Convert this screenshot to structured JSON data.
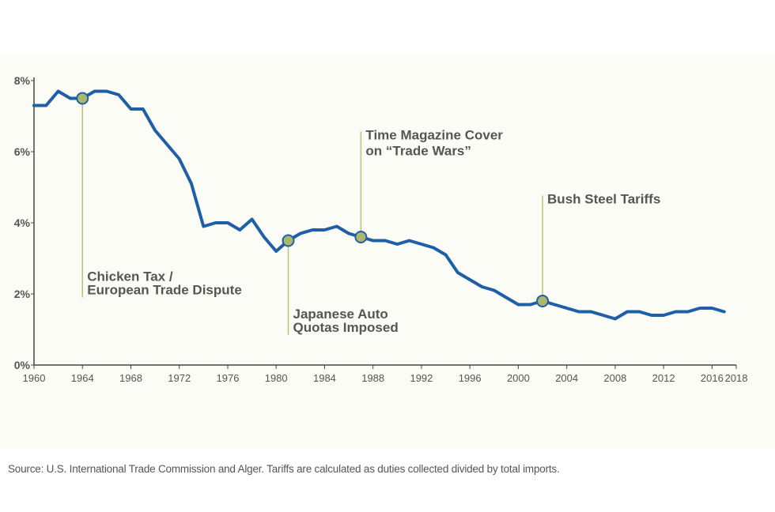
{
  "chart_data": {
    "type": "line",
    "title": "",
    "xlabel": "",
    "ylabel": "",
    "ylim": [
      0,
      8
    ],
    "xlim": [
      1960,
      2018
    ],
    "y_ticks": [
      "0%",
      "2%",
      "4%",
      "6%",
      "8%"
    ],
    "y_tick_values": [
      0,
      2,
      4,
      6,
      8
    ],
    "x_ticks": [
      "1960",
      "1964",
      "1968",
      "1972",
      "1976",
      "1980",
      "1984",
      "1988",
      "1992",
      "1996",
      "2000",
      "2004",
      "2008",
      "2012",
      "2016",
      "2018"
    ],
    "x_tick_values": [
      1960,
      1964,
      1968,
      1972,
      1976,
      1980,
      1984,
      1988,
      1992,
      1996,
      2000,
      2004,
      2008,
      2012,
      2016,
      2018
    ],
    "grid": false,
    "legend": "none",
    "series": [
      {
        "color": "#1f5fa8",
        "x": [
          1960,
          1961,
          1962,
          1963,
          1964,
          1965,
          1966,
          1967,
          1968,
          1969,
          1970,
          1971,
          1972,
          1973,
          1974,
          1975,
          1976,
          1977,
          1978,
          1979,
          1980,
          1981,
          1982,
          1983,
          1984,
          1985,
          1986,
          1987,
          1988,
          1989,
          1990,
          1991,
          1992,
          1993,
          1994,
          1995,
          1996,
          1997,
          1998,
          1999,
          2000,
          2001,
          2002,
          2003,
          2004,
          2005,
          2006,
          2007,
          2008,
          2009,
          2010,
          2011,
          2012,
          2013,
          2014,
          2015,
          2016,
          2017
        ],
        "y": [
          7.3,
          7.3,
          7.7,
          7.5,
          7.5,
          7.7,
          7.7,
          7.6,
          7.2,
          7.2,
          6.6,
          6.2,
          5.8,
          5.1,
          3.9,
          4.0,
          4.0,
          3.8,
          4.1,
          3.6,
          3.2,
          3.5,
          3.7,
          3.8,
          3.8,
          3.9,
          3.7,
          3.6,
          3.5,
          3.5,
          3.4,
          3.5,
          3.4,
          3.3,
          3.1,
          2.6,
          2.4,
          2.2,
          2.1,
          1.9,
          1.7,
          1.7,
          1.8,
          1.7,
          1.6,
          1.5,
          1.5,
          1.4,
          1.3,
          1.5,
          1.5,
          1.4,
          1.4,
          1.5,
          1.5,
          1.6,
          1.6,
          1.5
        ]
      }
    ],
    "annotations": [
      {
        "x": 1964,
        "y": 7.5,
        "label_lines": [
          "Chicken Tax /",
          "European Trade Dispute"
        ],
        "label_y": 1.9,
        "direction": "down"
      },
      {
        "x": 1981,
        "y": 3.5,
        "label_lines": [
          "Japanese Auto",
          "Quotas Imposed"
        ],
        "label_y": 0.85,
        "direction": "down"
      },
      {
        "x": 1987,
        "y": 3.6,
        "label_lines": [
          "Time Magazine Cover",
          "on “Trade Wars”"
        ],
        "label_y": 6.3,
        "direction": "up"
      },
      {
        "x": 2002,
        "y": 1.8,
        "label_lines": [
          "Bush Steel Tariffs"
        ],
        "label_y": 4.5,
        "direction": "up"
      }
    ],
    "line_color": "#1f5fa8",
    "marker_color": "#a9b86a",
    "leader_color": "#b9c27a",
    "source": "Source: U.S. International Trade Commission and Alger. Tariffs are calculated as duties collected divided by total imports."
  }
}
